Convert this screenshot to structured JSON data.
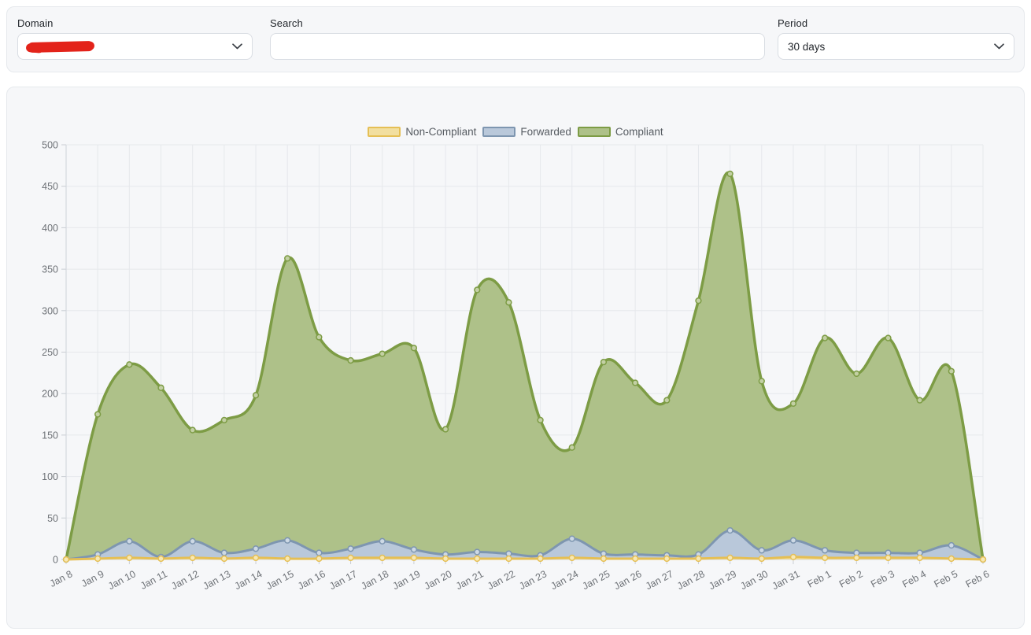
{
  "toolbar": {
    "domain": {
      "label": "Domain",
      "value": "",
      "value_redacted": true
    },
    "search": {
      "label": "Search",
      "value": "",
      "placeholder": ""
    },
    "period": {
      "label": "Period",
      "value": "30 days"
    }
  },
  "colors": {
    "redaction_scribble": "#e3231a",
    "card_background": "#f6f7f9",
    "card_border": "#e6e9ed",
    "grid_line": "#e6e8ec",
    "axis_line": "#cfd3d9",
    "axis_label": "#6e7277"
  },
  "chart_data": {
    "type": "area",
    "stacked": true,
    "grid": true,
    "legend_position": "top",
    "ylim": [
      0,
      500
    ],
    "y_ticks": [
      0,
      50,
      100,
      150,
      200,
      250,
      300,
      350,
      400,
      450,
      500
    ],
    "x": [
      "Jan 8",
      "Jan 9",
      "Jan 10",
      "Jan 11",
      "Jan 12",
      "Jan 13",
      "Jan 14",
      "Jan 15",
      "Jan 16",
      "Jan 17",
      "Jan 18",
      "Jan 19",
      "Jan 20",
      "Jan 21",
      "Jan 22",
      "Jan 23",
      "Jan 24",
      "Jan 25",
      "Jan 26",
      "Jan 27",
      "Jan 28",
      "Jan 29",
      "Jan 30",
      "Jan 31",
      "Feb 1",
      "Feb 2",
      "Feb 3",
      "Feb 4",
      "Feb 5",
      "Feb 6"
    ],
    "series": [
      {
        "name": "Non-Compliant",
        "stroke": "#e5bf55",
        "fill": "#f2dfa0",
        "point_fill": "#f7e8b4",
        "line_width": 3,
        "values": [
          0,
          1,
          2,
          1,
          2,
          1,
          2,
          1,
          1,
          2,
          2,
          2,
          1,
          1,
          1,
          1,
          2,
          1,
          1,
          1,
          1,
          2,
          1,
          3,
          2,
          2,
          2,
          2,
          1,
          0
        ]
      },
      {
        "name": "Forwarded",
        "stroke": "#7e96b0",
        "fill": "#b9c8da",
        "point_fill": "#cdd9e5",
        "line_width": 3,
        "values": [
          0,
          5,
          20,
          2,
          20,
          7,
          11,
          22,
          7,
          11,
          20,
          10,
          5,
          8,
          6,
          4,
          23,
          6,
          5,
          4,
          5,
          33,
          10,
          20,
          9,
          6,
          6,
          6,
          16,
          0
        ]
      },
      {
        "name": "Compliant",
        "stroke": "#7d9c45",
        "fill": "#aec189",
        "point_fill": "#c3d0a4",
        "line_width": 3.5,
        "values": [
          0,
          169,
          213,
          204,
          134,
          160,
          185,
          340,
          260,
          227,
          226,
          243,
          151,
          316,
          303,
          163,
          110,
          231,
          207,
          187,
          306,
          430,
          204,
          165,
          256,
          216,
          259,
          184,
          210,
          0
        ]
      }
    ]
  }
}
